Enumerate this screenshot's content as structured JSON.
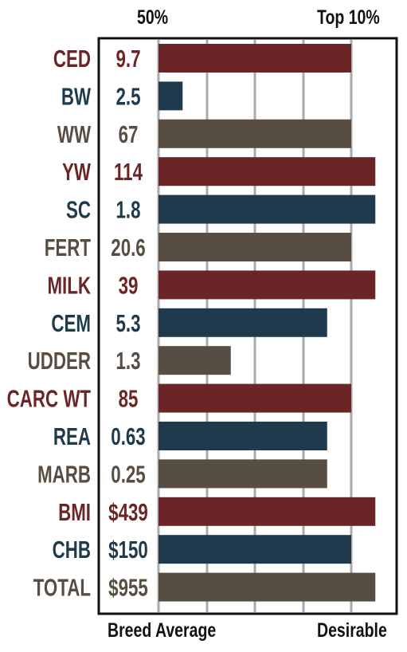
{
  "header": {
    "left_label": "50%",
    "right_label": "Top 10%"
  },
  "footer": {
    "left_label": "Breed Average",
    "right_label": "Desirable"
  },
  "colors": {
    "red": "#6b2526",
    "blue": "#1e3a4c",
    "brown": "#574d42",
    "grid": "#aaaaaa",
    "frame": "#111111"
  },
  "chart_data": {
    "type": "bar",
    "orientation": "horizontal",
    "categories": [
      "CED",
      "BW",
      "WW",
      "YW",
      "SC",
      "FERT",
      "MILK",
      "CEM",
      "UDDER",
      "CARC WT",
      "REA",
      "MARB",
      "BMI",
      "CHB",
      "TOTAL"
    ],
    "value_labels": [
      "9.7",
      "2.5",
      "67",
      "114",
      "1.8",
      "20.6",
      "39",
      "5.3",
      "1.3",
      "85",
      "0.63",
      "0.25",
      "$439",
      "$150",
      "$955"
    ],
    "bar_levels": [
      4,
      0.5,
      4,
      4.5,
      4.5,
      4,
      4.5,
      3.5,
      1.5,
      4,
      3.5,
      3.5,
      4.5,
      4,
      4.5
    ],
    "bar_colors": [
      "red",
      "blue",
      "brown",
      "red",
      "blue",
      "brown",
      "red",
      "blue",
      "brown",
      "red",
      "blue",
      "brown",
      "red",
      "blue",
      "brown"
    ],
    "x_axis_top": [
      "50%",
      "Top 10%"
    ],
    "x_axis_bottom": [
      "Breed Average",
      "Desirable"
    ],
    "grid": true
  }
}
